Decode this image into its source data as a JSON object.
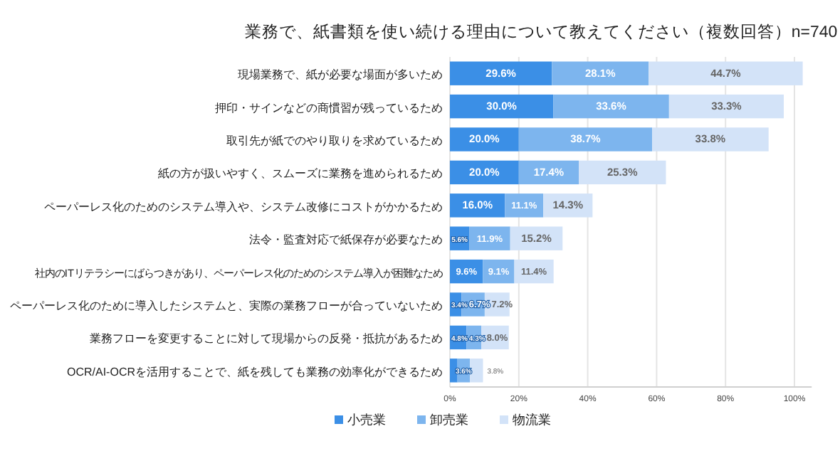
{
  "chart_data": {
    "type": "bar",
    "orientation": "horizontal",
    "stacked": true,
    "title": "業務で、紙書類を使い続ける理由について教えてください（複数回答）n=740",
    "categories": [
      "現場業務で、紙が必要な場面が多いため",
      "押印・サインなどの商慣習が残っているため",
      "取引先が紙でのやり取りを求めているため",
      "紙の方が扱いやすく、スムーズに業務を進められるため",
      "ペーパーレス化のためのシステム導入や、システム改修にコストがかかるため",
      "法令・監査対応で紙保存が必要なため",
      "社内のITリテラシーにばらつきがあり、ペーパーレス化のためのシステム導入が困難なため",
      "ペーパーレス化のために導入したシステムと、実際の業務フローが合っていないため",
      "業務フローを変更することに対して現場からの反発・抵抗があるため",
      "OCR/AI-OCRを活用することで、紙を残しても業務の効率化ができるため"
    ],
    "series": [
      {
        "name": "小売業",
        "color": "#3b8fe6",
        "values": [
          29.6,
          30.0,
          20.0,
          20.0,
          16.0,
          5.6,
          9.6,
          3.4,
          4.8,
          2.2
        ],
        "value_labels": [
          "29.6%",
          "30.0%",
          "20.0%",
          "20.0%",
          "16.0%",
          "5.6%",
          "9.6%",
          "3.4%",
          "4.8%",
          null
        ]
      },
      {
        "name": "卸売業",
        "color": "#7db5ee",
        "values": [
          28.1,
          33.6,
          38.7,
          17.4,
          11.1,
          11.9,
          9.1,
          6.7,
          4.3,
          3.6
        ],
        "value_labels": [
          "28.1%",
          "33.6%",
          "38.7%",
          "17.4%",
          "11.1%",
          "11.9%",
          "9.1%",
          "6.7%",
          "4.3%",
          "3.6%"
        ]
      },
      {
        "name": "物流業",
        "color": "#d3e3f8",
        "values": [
          44.7,
          33.3,
          33.8,
          25.3,
          14.3,
          15.2,
          11.4,
          7.2,
          8.0,
          3.8
        ],
        "value_labels": [
          "44.7%",
          "33.3%",
          "33.8%",
          "25.3%",
          "14.3%",
          "15.2%",
          "11.4%",
          "7.2%",
          "8.0%",
          "3.8%"
        ]
      }
    ],
    "xlim": [
      0,
      105
    ],
    "xticks": [
      {
        "value": 0,
        "label": "0%"
      },
      {
        "value": 20,
        "label": "20%"
      },
      {
        "value": 40,
        "label": "40%"
      },
      {
        "value": 60,
        "label": "60%"
      },
      {
        "value": 80,
        "label": "80%"
      },
      {
        "value": 100,
        "label": "100%"
      }
    ],
    "grid": "x",
    "legend": "bottom"
  }
}
